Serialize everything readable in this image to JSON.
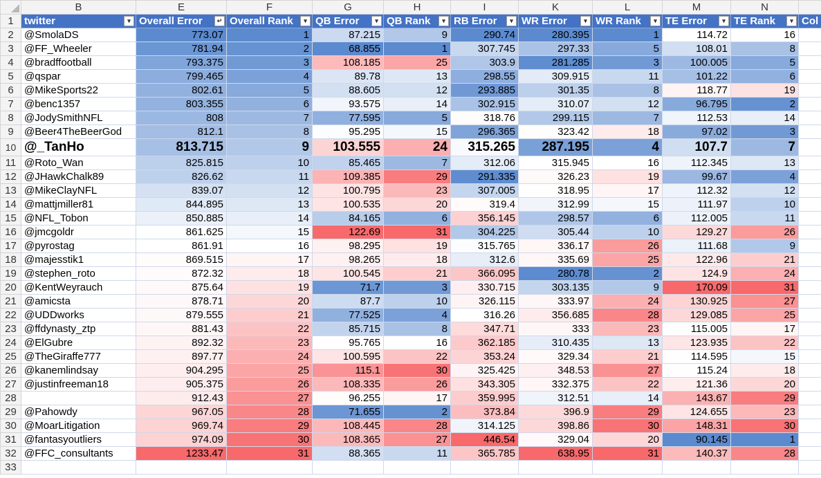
{
  "column_letters": [
    "",
    "B",
    "E",
    "F",
    "G",
    "H",
    "I",
    "K",
    "L",
    "M",
    "N",
    ""
  ],
  "headers": [
    "twitter",
    "Overall Error",
    "Overall Rank",
    "QB Error",
    "QB Rank",
    "RB Error",
    "WR Error",
    "WR Rank",
    "TE Error",
    "TE Rank",
    "Col"
  ],
  "rows": [
    {
      "n": "2",
      "c": [
        "@SmolaDS",
        "773.07",
        "1",
        "87.215",
        "9",
        "290.74",
        "280.395",
        "1",
        "114.72",
        "16",
        ""
      ]
    },
    {
      "n": "3",
      "c": [
        "@FF_Wheeler",
        "781.94",
        "2",
        "68.855",
        "1",
        "307.745",
        "297.33",
        "5",
        "108.01",
        "8",
        ""
      ]
    },
    {
      "n": "4",
      "c": [
        "@bradffootball",
        "793.375",
        "3",
        "108.185",
        "25",
        "303.9",
        "281.285",
        "3",
        "100.005",
        "5",
        ""
      ]
    },
    {
      "n": "5",
      "c": [
        "@qspar",
        "799.465",
        "4",
        "89.78",
        "13",
        "298.55",
        "309.915",
        "11",
        "101.22",
        "6",
        ""
      ]
    },
    {
      "n": "6",
      "c": [
        "@MikeSports22",
        "802.61",
        "5",
        "88.605",
        "12",
        "293.885",
        "301.35",
        "8",
        "118.77",
        "19",
        ""
      ]
    },
    {
      "n": "7",
      "c": [
        "@benc1357",
        "803.355",
        "6",
        "93.575",
        "14",
        "302.915",
        "310.07",
        "12",
        "96.795",
        "2",
        ""
      ]
    },
    {
      "n": "8",
      "c": [
        "@JodySmithNFL",
        "808",
        "7",
        "77.595",
        "5",
        "318.76",
        "299.115",
        "7",
        "112.53",
        "14",
        ""
      ]
    },
    {
      "n": "9",
      "c": [
        "@Beer4TheBeerGod",
        "812.1",
        "8",
        "95.295",
        "15",
        "296.365",
        "323.42",
        "18",
        "97.02",
        "3",
        ""
      ]
    },
    {
      "n": "10",
      "c": [
        "@_TanHo",
        "813.715",
        "9",
        "103.555",
        "24",
        "315.265",
        "287.195",
        "4",
        "107.7",
        "7",
        ""
      ]
    },
    {
      "n": "11",
      "c": [
        "@Roto_Wan",
        "825.815",
        "10",
        "85.465",
        "7",
        "312.06",
        "315.945",
        "16",
        "112.345",
        "13",
        ""
      ]
    },
    {
      "n": "12",
      "c": [
        "@JHawkChalk89",
        "826.62",
        "11",
        "109.385",
        "29",
        "291.335",
        "326.23",
        "19",
        "99.67",
        "4",
        ""
      ]
    },
    {
      "n": "13",
      "c": [
        "@MikeClayNFL",
        "839.07",
        "12",
        "100.795",
        "23",
        "307.005",
        "318.95",
        "17",
        "112.32",
        "12",
        ""
      ]
    },
    {
      "n": "14",
      "c": [
        "@mattjmiller81",
        "844.895",
        "13",
        "100.535",
        "20",
        "319.4",
        "312.99",
        "15",
        "111.97",
        "10",
        ""
      ]
    },
    {
      "n": "15",
      "c": [
        "@NFL_Tobon",
        "850.885",
        "14",
        "84.165",
        "6",
        "356.145",
        "298.57",
        "6",
        "112.005",
        "11",
        ""
      ]
    },
    {
      "n": "16",
      "c": [
        "@jmcgoldr",
        "861.625",
        "15",
        "122.69",
        "31",
        "304.225",
        "305.44",
        "10",
        "129.27",
        "26",
        ""
      ]
    },
    {
      "n": "17",
      "c": [
        "@pyrostag",
        "861.91",
        "16",
        "98.295",
        "19",
        "315.765",
        "336.17",
        "26",
        "111.68",
        "9",
        ""
      ]
    },
    {
      "n": "18",
      "c": [
        "@majesstik1",
        "869.515",
        "17",
        "98.265",
        "18",
        "312.6",
        "335.69",
        "25",
        "122.96",
        "21",
        ""
      ]
    },
    {
      "n": "19",
      "c": [
        "@stephen_roto",
        "872.32",
        "18",
        "100.545",
        "21",
        "366.095",
        "280.78",
        "2",
        "124.9",
        "24",
        ""
      ]
    },
    {
      "n": "20",
      "c": [
        "@KentWeyrauch",
        "875.64",
        "19",
        "71.7",
        "3",
        "330.715",
        "303.135",
        "9",
        "170.09",
        "31",
        ""
      ]
    },
    {
      "n": "21",
      "c": [
        "@amicsta",
        "878.71",
        "20",
        "87.7",
        "10",
        "326.115",
        "333.97",
        "24",
        "130.925",
        "27",
        ""
      ]
    },
    {
      "n": "22",
      "c": [
        "@UDDworks",
        "879.555",
        "21",
        "77.525",
        "4",
        "316.26",
        "356.685",
        "28",
        "129.085",
        "25",
        ""
      ]
    },
    {
      "n": "23",
      "c": [
        "@ffdynasty_ztp",
        "881.43",
        "22",
        "85.715",
        "8",
        "347.71",
        "333",
        "23",
        "115.005",
        "17",
        ""
      ]
    },
    {
      "n": "24",
      "c": [
        "@ElGubre",
        "892.32",
        "23",
        "95.765",
        "16",
        "362.185",
        "310.435",
        "13",
        "123.935",
        "22",
        ""
      ]
    },
    {
      "n": "25",
      "c": [
        "@TheGiraffe777",
        "897.77",
        "24",
        "100.595",
        "22",
        "353.24",
        "329.34",
        "21",
        "114.595",
        "15",
        ""
      ]
    },
    {
      "n": "26",
      "c": [
        "@kanemlindsay",
        "904.295",
        "25",
        "115.1",
        "30",
        "325.425",
        "348.53",
        "27",
        "115.24",
        "18",
        ""
      ]
    },
    {
      "n": "27",
      "c": [
        "@justinfreeman18",
        "905.375",
        "26",
        "108.335",
        "26",
        "343.305",
        "332.375",
        "22",
        "121.36",
        "20",
        ""
      ]
    },
    {
      "n": "28",
      "c": [
        "",
        "912.43",
        "27",
        "96.255",
        "17",
        "359.995",
        "312.51",
        "14",
        "143.67",
        "29",
        ""
      ]
    },
    {
      "n": "29",
      "c": [
        "@Pahowdy",
        "967.05",
        "28",
        "71.655",
        "2",
        "373.84",
        "396.9",
        "29",
        "124.655",
        "23",
        ""
      ]
    },
    {
      "n": "30",
      "c": [
        "@MoarLitigation",
        "969.74",
        "29",
        "108.445",
        "28",
        "314.125",
        "398.86",
        "30",
        "148.31",
        "30",
        ""
      ]
    },
    {
      "n": "31",
      "c": [
        "@fantasyoutliers",
        "974.09",
        "30",
        "108.365",
        "27",
        "446.54",
        "329.04",
        "20",
        "90.145",
        "1",
        ""
      ]
    },
    {
      "n": "32",
      "c": [
        "@FFC_consultants",
        "1233.47",
        "31",
        "88.365",
        "11",
        "365.785",
        "638.95",
        "31",
        "140.37",
        "28",
        ""
      ]
    },
    {
      "n": "33",
      "c": [
        "",
        "",
        "",
        "",
        "",
        "",
        "",
        "",
        "",
        "",
        ""
      ]
    }
  ]
}
